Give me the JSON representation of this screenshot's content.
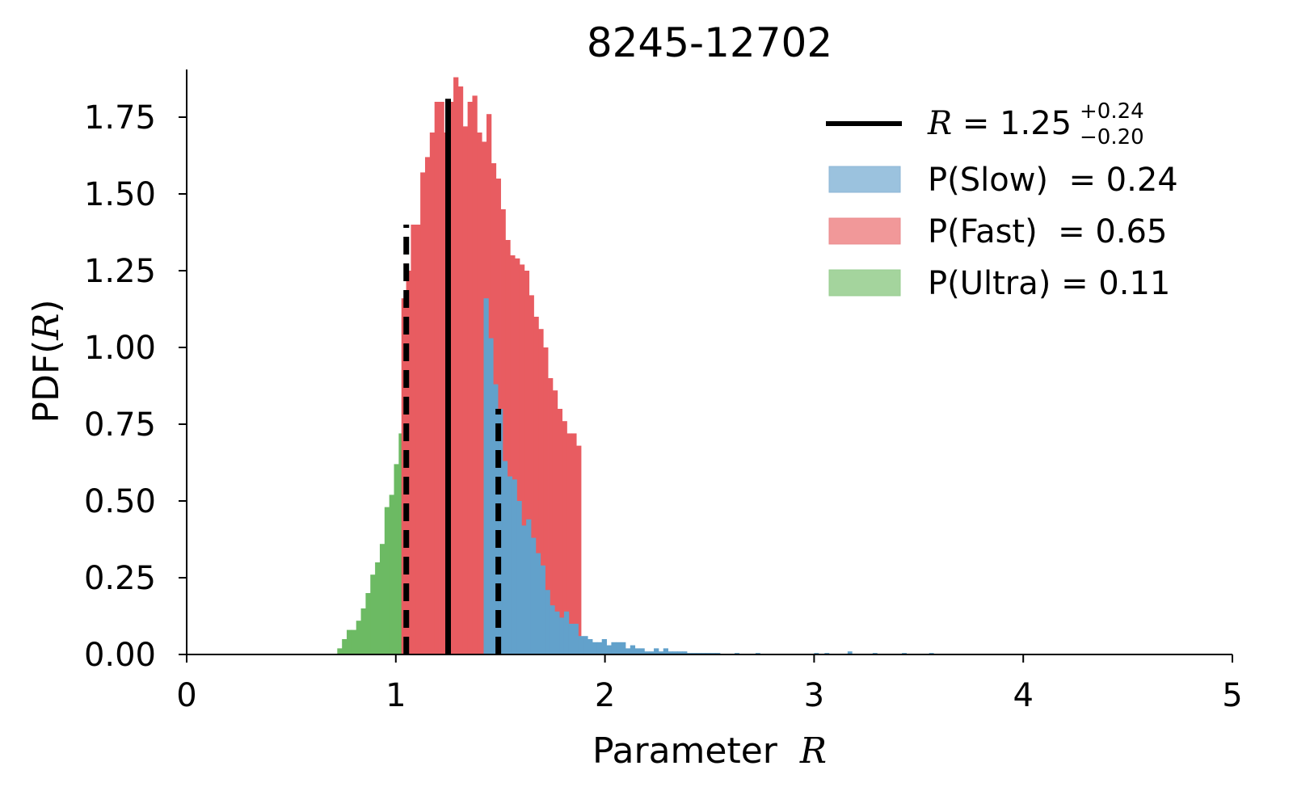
{
  "chart_data": {
    "type": "histogram",
    "title": "8245-12702",
    "xlabel": "Parameter",
    "xlabel_symbol": "R",
    "ylabel": "PDF(",
    "ylabel_symbol": "R",
    "ylabel_suffix": ")",
    "xlim": [
      0,
      5
    ],
    "ylim": [
      0,
      1.9
    ],
    "xticks": [
      "0",
      "1",
      "2",
      "3",
      "4",
      "5"
    ],
    "yticks": [
      "0.00",
      "0.25",
      "0.50",
      "0.75",
      "1.00",
      "1.25",
      "1.50",
      "1.75"
    ],
    "bin_width": 0.0226,
    "thresholds": {
      "ultra_fast_boundary": 1.02,
      "fast_slow_boundary": 1.42
    },
    "series": [
      {
        "name": "P(Ultra) = 0.11",
        "color": "#6cba63",
        "bins_start": 0.72,
        "values": [
          0.02,
          0.05,
          0.08,
          0.08,
          0.11,
          0.15,
          0.2,
          0.26,
          0.3,
          0.36,
          0.48,
          0.52,
          0.62,
          0.72,
          0.74,
          0.82,
          0.87,
          0.98
        ]
      },
      {
        "name": "P(Fast)  = 0.65",
        "color": "#e85c61",
        "bins_start": 1.0268,
        "values": [
          1.16,
          1.25,
          1.4,
          1.4,
          1.57,
          1.62,
          1.7,
          1.8,
          1.8,
          1.7,
          1.8,
          1.88,
          1.85,
          1.72,
          1.8,
          1.82,
          1.7,
          1.67,
          1.76,
          1.6,
          1.55,
          1.45,
          1.35,
          1.3,
          1.29,
          1.27,
          1.25,
          1.17,
          1.1,
          1.06,
          1.0,
          0.9,
          0.86,
          0.8,
          0.76,
          0.72,
          0.72,
          0.68
        ]
      },
      {
        "name": "P(Slow)  = 0.24",
        "color": "#62a1cb",
        "bins_start": 1.42,
        "values": [
          1.16,
          1.03,
          0.88,
          0.8,
          0.63,
          0.58,
          0.57,
          0.5,
          0.42,
          0.44,
          0.38,
          0.33,
          0.29,
          0.21,
          0.16,
          0.14,
          0.12,
          0.14,
          0.1,
          0.1,
          0.06,
          0.06,
          0.05,
          0.04,
          0.04,
          0.05,
          0.03,
          0.04,
          0.04,
          0.04,
          0.02,
          0.03,
          0.02,
          0.02,
          0.01,
          0.01,
          0.02,
          0.01,
          0.02,
          0.01,
          0.01,
          0.01,
          0.01,
          0.005,
          0.005,
          0.005,
          0.005,
          0.005,
          0.005,
          0.005
        ]
      }
    ],
    "tail_points": [
      [
        2.62,
        0.005
      ],
      [
        2.72,
        0.005
      ],
      [
        3.0,
        0.005
      ],
      [
        3.05,
        0.005
      ],
      [
        3.16,
        0.01
      ],
      [
        3.28,
        0.005
      ],
      [
        3.42,
        0.005
      ],
      [
        3.55,
        0.005
      ]
    ],
    "median": {
      "value": 1.25,
      "peak": 1.81,
      "color": "#000000"
    },
    "quantiles": [
      {
        "value": 1.05,
        "peak": 1.4
      },
      {
        "value": 1.49,
        "peak": 0.8
      }
    ],
    "legend": {
      "placement": "top-right",
      "median_label": {
        "prefix": "R",
        "eq": " = 1.25",
        "plus": "+0.24",
        "minus": "−0.20"
      },
      "entries": [
        {
          "label": "P(Slow)  = 0.24",
          "color": "#9bc2de"
        },
        {
          "label": "P(Fast)  = 0.65",
          "color": "#f19899"
        },
        {
          "label": "P(Ultra) = 0.11",
          "color": "#a4d49d"
        }
      ]
    }
  }
}
